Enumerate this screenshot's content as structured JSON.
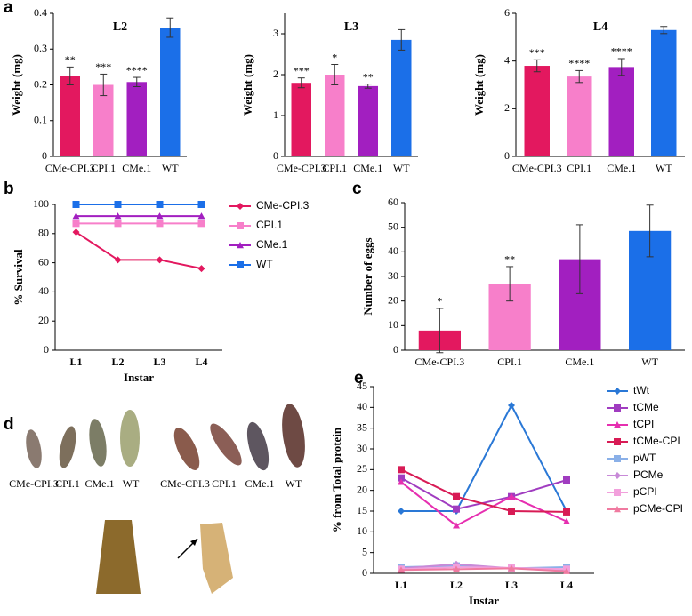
{
  "chart_data": [
    {
      "type": "bar",
      "panel": "a",
      "title": "L2",
      "ylabel": "Weight (mg)",
      "categories": [
        "CMe-CPI.3",
        "CPI.1",
        "CMe.1",
        "WT"
      ],
      "values": [
        0.225,
        0.2,
        0.208,
        0.36
      ],
      "errors": [
        0.025,
        0.03,
        0.013,
        0.027
      ],
      "significance": [
        "**",
        "***",
        "****",
        null
      ],
      "colors": [
        "#e3185f",
        "#f77fca",
        "#a21fc0",
        "#1b6fe8"
      ],
      "ylim": [
        0,
        0.4
      ],
      "yticks": [
        0,
        0.1,
        0.2,
        0.3,
        0.4
      ]
    },
    {
      "type": "bar",
      "title": "L3",
      "ylabel": "Weight (mg)",
      "categories": [
        "CMe-CPI.3",
        "CPI.1",
        "CMe.1",
        "WT"
      ],
      "values": [
        1.8,
        2.0,
        1.72,
        2.85
      ],
      "errors": [
        0.12,
        0.25,
        0.05,
        0.25
      ],
      "significance": [
        "***",
        "*",
        "**",
        null
      ],
      "colors": [
        "#e3185f",
        "#f77fca",
        "#a21fc0",
        "#1b6fe8"
      ],
      "ylim": [
        0,
        3.5
      ],
      "yticks": [
        0,
        1,
        2,
        3
      ]
    },
    {
      "type": "bar",
      "title": "L4",
      "ylabel": "Weight (mg)",
      "categories": [
        "CMe-CPI.3",
        "CPI.1",
        "CMe.1",
        "WT"
      ],
      "values": [
        3.8,
        3.35,
        3.75,
        5.3
      ],
      "errors": [
        0.25,
        0.25,
        0.35,
        0.15
      ],
      "significance": [
        "***",
        "****",
        "****",
        null
      ],
      "colors": [
        "#e3185f",
        "#f77fca",
        "#a21fc0",
        "#1b6fe8"
      ],
      "ylim": [
        0,
        6
      ],
      "yticks": [
        0,
        2,
        4,
        6
      ]
    },
    {
      "type": "line",
      "panel": "b",
      "xlabel": "Instar",
      "ylabel": "% Survival",
      "categories": [
        "L1",
        "L2",
        "L3",
        "L4"
      ],
      "series": [
        {
          "name": "CMe-CPI.3",
          "color": "#e3185f",
          "marker": "diamond",
          "values": [
            81,
            62,
            62,
            56
          ]
        },
        {
          "name": "CPI.1",
          "color": "#f77fca",
          "marker": "square",
          "values": [
            87,
            87,
            87,
            87
          ]
        },
        {
          "name": "CMe.1",
          "color": "#a21fc0",
          "marker": "triangle",
          "values": [
            92,
            92,
            92,
            92
          ]
        },
        {
          "name": "WT",
          "color": "#1b6fe8",
          "marker": "square",
          "values": [
            100,
            100,
            100,
            100
          ]
        }
      ],
      "ylim": [
        0,
        100
      ],
      "yticks": [
        0,
        20,
        40,
        60,
        80,
        100
      ],
      "legend": "right"
    },
    {
      "type": "bar",
      "panel": "c",
      "ylabel": "Number of eggs",
      "categories": [
        "CMe-CPI.3",
        "CPI.1",
        "CMe.1",
        "WT"
      ],
      "values": [
        8,
        27,
        37,
        48.5
      ],
      "errors": [
        9,
        7,
        14,
        10.5
      ],
      "significance": [
        "*",
        "**",
        null,
        null
      ],
      "colors": [
        "#e3185f",
        "#f77fca",
        "#a21fc0",
        "#1b6fe8"
      ],
      "ylim": [
        0,
        60
      ],
      "yticks": [
        0,
        10,
        20,
        30,
        40,
        50,
        60
      ]
    },
    {
      "type": "line",
      "panel": "e",
      "xlabel": "Instar",
      "ylabel": "% from Total protein",
      "categories": [
        "L1",
        "L2",
        "L3",
        "L4"
      ],
      "series": [
        {
          "name": "tWt",
          "color": "#2a78d6",
          "marker": "diamond",
          "values": [
            15,
            15,
            40.5,
            15
          ]
        },
        {
          "name": "tCMe",
          "color": "#a03cc0",
          "marker": "square",
          "values": [
            23,
            15.5,
            18.5,
            22.5
          ]
        },
        {
          "name": "tCPI",
          "color": "#e62fb0",
          "marker": "triangle",
          "values": [
            22,
            11.5,
            18.5,
            12.5
          ]
        },
        {
          "name": "tCMe-CPI",
          "color": "#d81b55",
          "marker": "square",
          "values": [
            25,
            18.5,
            15,
            14.8
          ]
        },
        {
          "name": "pWT",
          "color": "#8ab0e8",
          "marker": "square",
          "values": [
            1.5,
            1.8,
            1.2,
            1.5
          ]
        },
        {
          "name": "PCMe",
          "color": "#c88ad8",
          "marker": "diamond",
          "values": [
            1.2,
            2.2,
            1.2,
            0.8
          ]
        },
        {
          "name": "pCPI",
          "color": "#f2a0dc",
          "marker": "square",
          "values": [
            1,
            1.5,
            1.3,
            1
          ]
        },
        {
          "name": "pCMe-CPI",
          "color": "#f07aa0",
          "marker": "triangle",
          "values": [
            0.8,
            1,
            1.2,
            0.5
          ]
        }
      ],
      "ylim": [
        0,
        45
      ],
      "yticks": [
        0,
        5,
        10,
        15,
        20,
        25,
        30,
        35,
        40,
        45
      ],
      "legend": "right"
    }
  ],
  "photo": {
    "panel": "d",
    "captions_left": [
      "CMe-CPI.3",
      "CPI.1",
      "CMe.1",
      "WT"
    ],
    "captions_right": [
      "CMe-CPI.3",
      "CPI.1",
      "CMe.1",
      "WT"
    ]
  }
}
